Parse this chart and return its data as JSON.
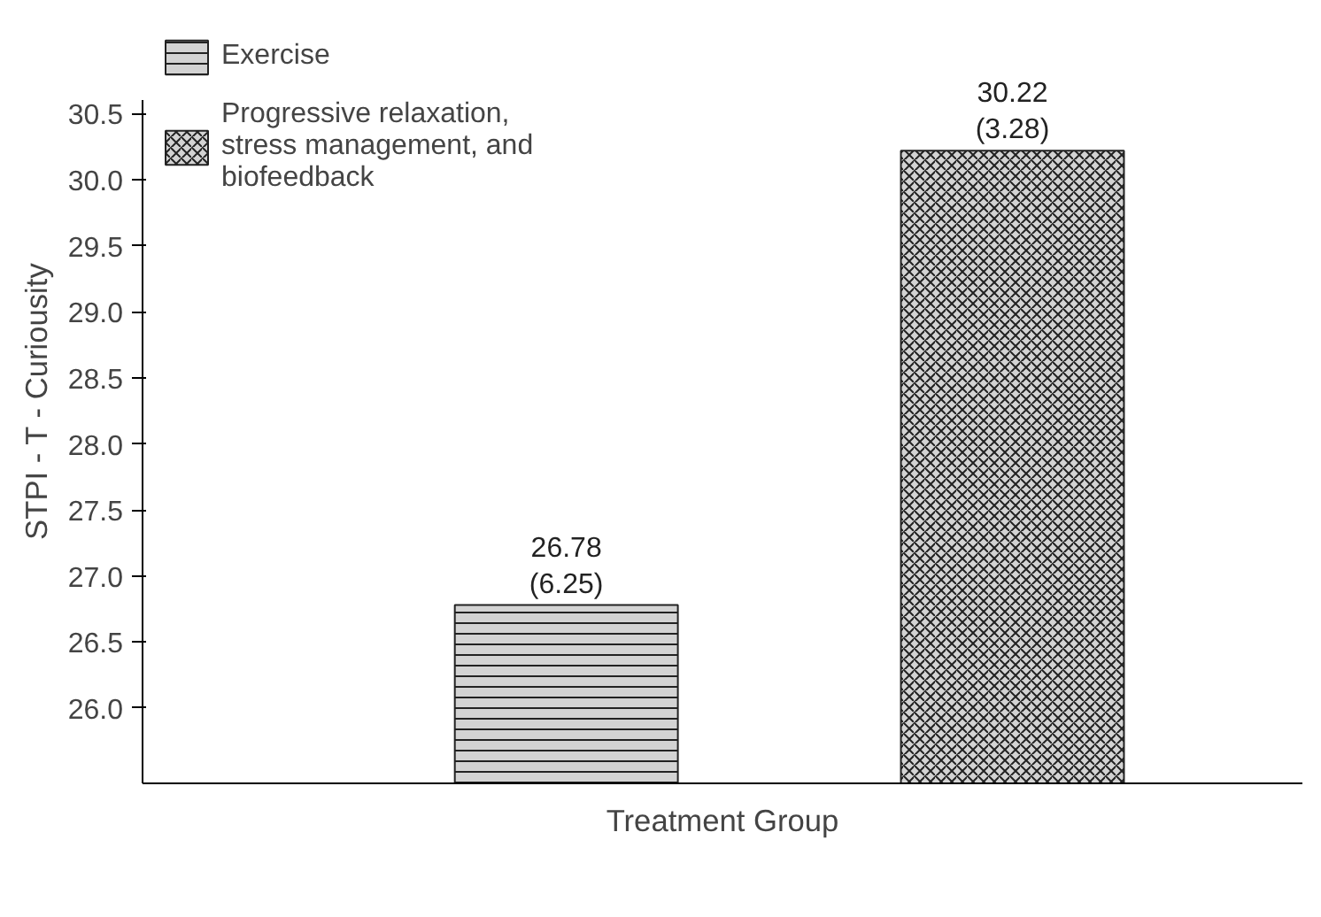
{
  "chart_data": {
    "type": "bar",
    "xlabel": "Treatment Group",
    "ylabel": "STPI - T - Curiousity",
    "categories": [
      null,
      null
    ],
    "series": [
      {
        "name": "Exercise",
        "color": "#222222",
        "values": [
          26.78,
          null
        ],
        "value_labels": [
          "26.78\n(6.25)",
          null
        ]
      },
      {
        "name": "Progressive relaxation, stress management, and biofeedback",
        "color": "#222222",
        "values": [
          null,
          30.22
        ],
        "value_labels": [
          null,
          "30.22\n(3.28)"
        ]
      }
    ],
    "ylim": [
      25.43,
      30.6
    ],
    "yticks": [
      {
        "value": 26.0,
        "label": "26.0"
      },
      {
        "value": 26.5,
        "label": "26.5"
      },
      {
        "value": 27.0,
        "label": "27.0"
      },
      {
        "value": 27.5,
        "label": "27.5"
      },
      {
        "value": 28.0,
        "label": "28.0"
      },
      {
        "value": 28.5,
        "label": "28.5"
      },
      {
        "value": 29.0,
        "label": "29.0"
      },
      {
        "value": 29.5,
        "label": "29.5"
      },
      {
        "value": 30.0,
        "label": "30.0"
      },
      {
        "value": 30.5,
        "label": "30.5"
      }
    ],
    "legend": "top left",
    "grid": false
  }
}
